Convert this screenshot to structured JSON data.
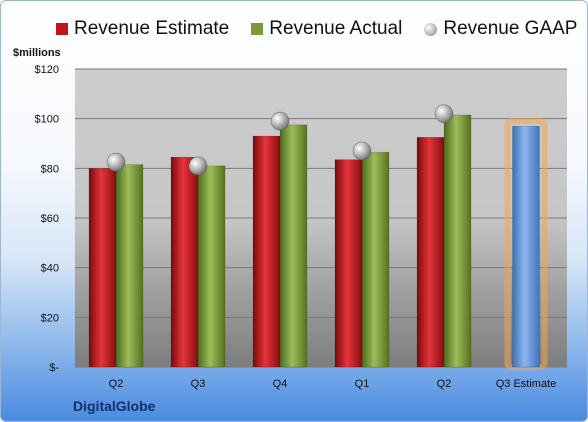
{
  "chart_data": {
    "type": "bar",
    "unit_label": "$millions",
    "categories": [
      "Q2",
      "Q3",
      "Q4",
      "Q1",
      "Q2",
      "Q3 Estimate"
    ],
    "series": [
      {
        "name": "Revenue Estimate",
        "kind": "bar",
        "color": "#c0151c",
        "values": [
          80,
          84.5,
          93,
          83.5,
          92.5,
          null
        ]
      },
      {
        "name": "Revenue Actual",
        "kind": "bar",
        "color": "#7b9b3a",
        "values": [
          81.5,
          81,
          97.5,
          86.5,
          101.5,
          null
        ]
      },
      {
        "name": "Revenue GAAP",
        "kind": "marker",
        "color": "#a8a8a8",
        "values": [
          82.5,
          81,
          99,
          87,
          102,
          null
        ]
      }
    ],
    "estimate": {
      "category": "Q3 Estimate",
      "value": 97,
      "color": "#5a8fd6",
      "glow_color": "#f6a548"
    },
    "yticks": [
      0,
      20,
      40,
      60,
      80,
      100,
      120
    ],
    "ytick_labels": [
      "$-",
      "$20",
      "$40",
      "$60",
      "$80",
      "$100",
      "$120"
    ],
    "ylim": [
      0,
      120
    ],
    "grid": true,
    "legend_position": "top"
  },
  "brand": {
    "label": "DigitalGlobe"
  }
}
